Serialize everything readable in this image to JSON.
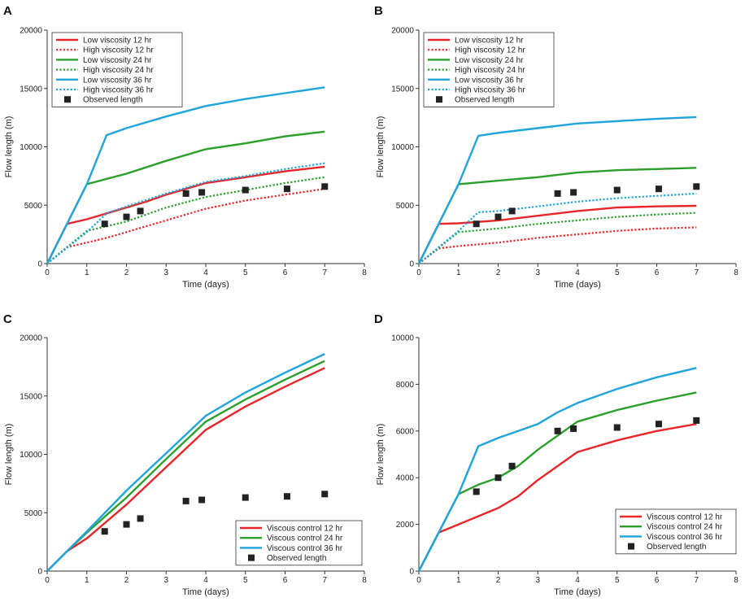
{
  "colors": {
    "12": "#e8262a",
    "24": "#2aa02b",
    "36": "#1fa4dd",
    "observed": "#222222"
  },
  "chart_data": [
    {
      "panel": "A",
      "type": "line",
      "xlabel": "Time (days)",
      "ylabel": "Flow length (m)",
      "xlim": [
        0,
        8
      ],
      "ylim": [
        0,
        20000
      ],
      "xticks": [
        0,
        1,
        2,
        3,
        4,
        5,
        6,
        7,
        8
      ],
      "yticks": [
        0,
        5000,
        10000,
        15000,
        20000
      ],
      "legend_position": "top-left",
      "series": [
        {
          "name": "Low viscosity  12 hr",
          "color_key": "12",
          "style": "solid",
          "x": [
            0,
            0.5,
            1,
            1.5,
            2,
            2.5,
            3,
            3.5,
            4,
            5,
            6,
            7
          ],
          "y": [
            0,
            3400,
            3800,
            4300,
            4800,
            5300,
            5900,
            6400,
            6900,
            7400,
            7900,
            8300
          ]
        },
        {
          "name": "High viscosity 12 hr",
          "color_key": "12",
          "style": "dotted",
          "x": [
            0,
            0.5,
            1,
            1.5,
            2,
            2.5,
            3,
            3.5,
            4,
            5,
            6,
            7
          ],
          "y": [
            0,
            1400,
            1800,
            2200,
            2700,
            3200,
            3700,
            4200,
            4700,
            5400,
            5900,
            6400
          ]
        },
        {
          "name": "Low viscosity 24 hr",
          "color_key": "24",
          "style": "solid",
          "x": [
            0,
            1,
            2,
            3,
            4,
            5,
            6,
            7
          ],
          "y": [
            0,
            6800,
            7700,
            8800,
            9800,
            10300,
            10900,
            11300
          ]
        },
        {
          "name": "High viscosity 24 hr",
          "color_key": "24",
          "style": "dotted",
          "x": [
            0,
            1,
            2,
            3,
            4,
            5,
            6,
            7
          ],
          "y": [
            0,
            2800,
            3600,
            4800,
            5700,
            6300,
            6900,
            7400
          ]
        },
        {
          "name": "Low viscosity 36 hr",
          "color_key": "36",
          "style": "solid",
          "x": [
            0,
            1,
            1.5,
            2,
            3,
            4,
            5,
            6,
            7
          ],
          "y": [
            0,
            6800,
            11000,
            11600,
            12600,
            13500,
            14100,
            14600,
            15100
          ]
        },
        {
          "name": "High viscosity 36 hr",
          "color_key": "36",
          "style": "dotted",
          "x": [
            0,
            1,
            1.5,
            2,
            3,
            4,
            5,
            6,
            7
          ],
          "y": [
            0,
            2700,
            4300,
            4900,
            6000,
            7000,
            7500,
            8100,
            8600
          ]
        },
        {
          "name": "Observed length",
          "color_key": "observed",
          "style": "marker",
          "x": [
            1.45,
            2.0,
            2.35,
            3.5,
            3.9,
            5.0,
            6.05,
            7.0
          ],
          "y": [
            3400,
            4000,
            4500,
            6000,
            6100,
            6300,
            6400,
            6600
          ]
        }
      ]
    },
    {
      "panel": "B",
      "type": "line",
      "xlabel": "Time (days)",
      "ylabel": "Flow length (m)",
      "xlim": [
        0,
        8
      ],
      "ylim": [
        0,
        20000
      ],
      "xticks": [
        0,
        1,
        2,
        3,
        4,
        5,
        6,
        7,
        8
      ],
      "yticks": [
        0,
        5000,
        10000,
        15000,
        20000
      ],
      "legend_position": "top-left",
      "series": [
        {
          "name": "Low viscosity 12 hr",
          "color_key": "12",
          "style": "solid",
          "x": [
            0,
            0.5,
            1,
            2,
            3,
            4,
            5,
            6,
            7
          ],
          "y": [
            0,
            3400,
            3450,
            3700,
            4100,
            4500,
            4800,
            4900,
            4950
          ]
        },
        {
          "name": "High viscosity 12 hr",
          "color_key": "12",
          "style": "dotted",
          "x": [
            0,
            0.5,
            1,
            2,
            3,
            4,
            5,
            6,
            7
          ],
          "y": [
            0,
            1300,
            1500,
            1800,
            2200,
            2500,
            2800,
            3000,
            3100
          ]
        },
        {
          "name": "Low viscosity 24 hr",
          "color_key": "24",
          "style": "solid",
          "x": [
            0,
            1,
            2,
            3,
            4,
            5,
            6,
            7
          ],
          "y": [
            0,
            6800,
            7100,
            7400,
            7800,
            8000,
            8100,
            8200
          ]
        },
        {
          "name": "High viscosity 24 hr",
          "color_key": "24",
          "style": "dotted",
          "x": [
            0,
            1,
            2,
            3,
            4,
            5,
            6,
            7
          ],
          "y": [
            0,
            2700,
            3000,
            3400,
            3700,
            4000,
            4200,
            4350
          ]
        },
        {
          "name": "Low viscosity 36 hr",
          "color_key": "36",
          "style": "solid",
          "x": [
            0,
            1,
            1.5,
            2,
            3,
            4,
            5,
            6,
            7
          ],
          "y": [
            0,
            6800,
            10950,
            11200,
            11600,
            12000,
            12200,
            12400,
            12550
          ]
        },
        {
          "name": "High viscosity 36 hr",
          "color_key": "36",
          "style": "dotted",
          "x": [
            0,
            1,
            1.5,
            2,
            3,
            4,
            5,
            6,
            7
          ],
          "y": [
            0,
            2800,
            4400,
            4500,
            4900,
            5300,
            5600,
            5800,
            6000
          ]
        },
        {
          "name": "Observed length",
          "color_key": "observed",
          "style": "marker",
          "x": [
            1.45,
            2.0,
            2.35,
            3.5,
            3.9,
            5.0,
            6.05,
            7.0
          ],
          "y": [
            3400,
            4000,
            4500,
            6000,
            6100,
            6300,
            6400,
            6600
          ]
        }
      ]
    },
    {
      "panel": "C",
      "type": "line",
      "xlabel": "Time (days)",
      "ylabel": "Flow length (m)",
      "xlim": [
        0,
        8
      ],
      "ylim": [
        0,
        20000
      ],
      "xticks": [
        0,
        1,
        2,
        3,
        4,
        5,
        6,
        7,
        8
      ],
      "yticks": [
        0,
        5000,
        10000,
        15000,
        20000
      ],
      "legend_position": "bottom-right",
      "series": [
        {
          "name": "Viscous control 12 hr",
          "color_key": "12",
          "style": "solid",
          "x": [
            0,
            0.5,
            1,
            2,
            3,
            4,
            5,
            6,
            7
          ],
          "y": [
            0,
            1700,
            2800,
            5700,
            8900,
            12100,
            14100,
            15800,
            17400
          ]
        },
        {
          "name": "Viscous control 24 hr",
          "color_key": "24",
          "style": "solid",
          "x": [
            0,
            0.5,
            1,
            2,
            3,
            4,
            5,
            6,
            7
          ],
          "y": [
            0,
            1700,
            3300,
            6300,
            9600,
            12800,
            14700,
            16400,
            18000
          ]
        },
        {
          "name": "Viscous control 36 hr",
          "color_key": "36",
          "style": "solid",
          "x": [
            0,
            0.5,
            1,
            2,
            3,
            4,
            5,
            6,
            7
          ],
          "y": [
            0,
            1700,
            3400,
            6900,
            10100,
            13300,
            15300,
            17000,
            18600
          ]
        },
        {
          "name": "Observed length",
          "color_key": "observed",
          "style": "marker",
          "x": [
            1.45,
            2.0,
            2.35,
            3.5,
            3.9,
            5.0,
            6.05,
            7.0
          ],
          "y": [
            3400,
            4000,
            4500,
            6000,
            6100,
            6300,
            6400,
            6600
          ]
        }
      ]
    },
    {
      "panel": "D",
      "type": "line",
      "xlabel": "Time (days)",
      "ylabel": "Flow length (m)",
      "xlim": [
        0,
        8
      ],
      "ylim": [
        0,
        10000
      ],
      "xticks": [
        0,
        1,
        2,
        3,
        4,
        5,
        6,
        7,
        8
      ],
      "yticks": [
        0,
        2000,
        4000,
        6000,
        8000,
        10000
      ],
      "legend_position": "bottom-right",
      "series": [
        {
          "name": "Viscous control 12 hr",
          "color_key": "12",
          "style": "solid",
          "x": [
            0,
            0.5,
            1,
            2,
            2.5,
            3,
            3.5,
            4,
            5,
            6,
            7
          ],
          "y": [
            0,
            1650,
            2000,
            2700,
            3200,
            3900,
            4500,
            5100,
            5600,
            6000,
            6300
          ]
        },
        {
          "name": "Viscous control 24 hr",
          "color_key": "24",
          "style": "solid",
          "x": [
            0,
            1,
            1.5,
            2,
            2.5,
            3,
            3.5,
            4,
            5,
            6,
            7
          ],
          "y": [
            0,
            3300,
            3700,
            4000,
            4500,
            5200,
            5800,
            6400,
            6900,
            7300,
            7650
          ]
        },
        {
          "name": "Viscous control 36 hr",
          "color_key": "36",
          "style": "solid",
          "x": [
            0,
            1,
            1.5,
            2,
            3,
            3.5,
            4,
            5,
            6,
            7
          ],
          "y": [
            0,
            3300,
            5350,
            5700,
            6300,
            6800,
            7200,
            7800,
            8300,
            8700
          ]
        },
        {
          "name": "Observed length",
          "color_key": "observed",
          "style": "marker",
          "x": [
            1.45,
            2.0,
            2.35,
            3.5,
            3.9,
            5.0,
            6.05,
            7.0
          ],
          "y": [
            3400,
            4000,
            4500,
            6000,
            6100,
            6150,
            6300,
            6450
          ]
        }
      ]
    }
  ]
}
